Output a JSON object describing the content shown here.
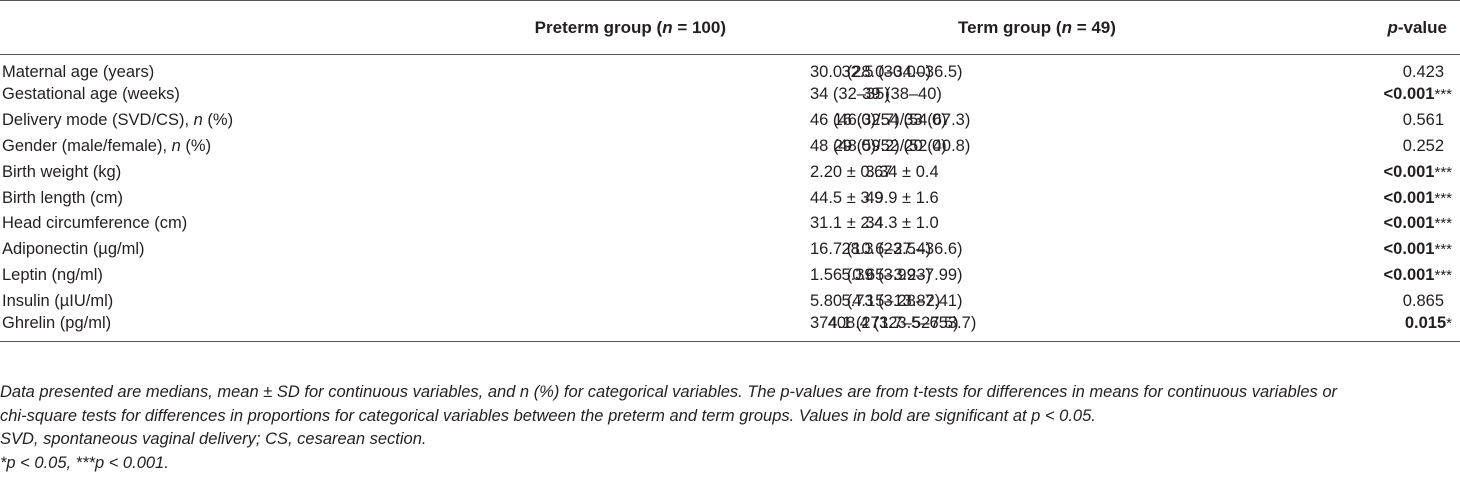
{
  "table": {
    "headers": {
      "variable": "",
      "preterm_prefix": "Preterm group (",
      "preterm_n": "n",
      "preterm_suffix": " = 100)",
      "term_prefix": "Term group (",
      "term_n": "n",
      "term_suffix": " = 49)",
      "p_italic": "p",
      "p_suffix": "-value"
    },
    "rows": [
      {
        "var": "Maternal age (years)",
        "var_italic": "",
        "var_tail": "",
        "preterm": "30.0 (28.0–34.0)",
        "term": "32.5 (30.0–36.5)",
        "p": "0.423",
        "stars": "",
        "significant": false
      },
      {
        "var": "Gestational age (weeks)",
        "var_italic": "",
        "var_tail": "",
        "preterm": "34 (32–35)",
        "term": "39 (38–40)",
        "p": "<0.001",
        "stars": "***",
        "significant": true
      },
      {
        "var": "Delivery mode (SVD/CS), ",
        "var_italic": "n",
        "var_tail": " (%)",
        "preterm": "46 (46.0)/54 (54.0)",
        "term": "16 (32.7)/33 (67.3)",
        "p": "0.561",
        "stars": "",
        "significant": false
      },
      {
        "var": "Gender (male/female), ",
        "var_italic": "n",
        "var_tail": " (%)",
        "preterm": "48 (48.0)/52 (52.0)",
        "term": "29 (59.2)/20 (40.8)",
        "p": "0.252",
        "stars": "",
        "significant": false
      },
      {
        "var": "Birth weight (kg)",
        "var_italic": "",
        "var_tail": "",
        "preterm": "2.20 ± 0.67",
        "term": "3.34 ± 0.4",
        "p": "<0.001",
        "stars": "***",
        "significant": true
      },
      {
        "var": "Birth length (cm)",
        "var_italic": "",
        "var_tail": "",
        "preterm": "44.5 ± 3.9",
        "term": "49.9 ± 1.6",
        "p": "<0.001",
        "stars": "***",
        "significant": true
      },
      {
        "var": "Head circumference (cm)",
        "var_italic": "",
        "var_tail": "",
        "preterm": "31.1 ± 2.4",
        "term": "34.3 ± 1.0",
        "p": "<0.001",
        "stars": "***",
        "significant": true
      },
      {
        "var": "Adiponectin (µg/ml)",
        "var_italic": "",
        "var_tail": "",
        "preterm": "16.7 (10.6–27.4)",
        "term": "28.3 (23.5–36.6)",
        "p": "<0.001",
        "stars": "***",
        "significant": true
      },
      {
        "var": "Leptin (ng/ml)",
        "var_italic": "",
        "var_tail": "",
        "preterm": "1.56 (0.65–3.23)",
        "term": "5.39 (3.99–7.99)",
        "p": "<0.001",
        "stars": "***",
        "significant": true
      },
      {
        "var": "Insulin (µIU/ml)",
        "var_italic": "",
        "var_tail": "",
        "preterm": "5.80 (4.15–13.82)",
        "term": "5.73 (3.28–7.41)",
        "p": "0.865",
        "stars": "",
        "significant": false
      },
      {
        "var": "Ghrelin (pg/ml)",
        "var_italic": "",
        "var_tail": "",
        "preterm": "374.1 (271.7–527.5)",
        "term": "408.4 (323.5–653.7)",
        "p": "0.015",
        "stars": "*",
        "significant": true
      }
    ]
  },
  "footnotes": {
    "line1": "Data presented are medians, mean ± SD for continuous variables, and n (%) for categorical variables. The p-values are from t-tests for differences in means for continuous variables or",
    "line2": "chi-square tests for differences in proportions for categorical variables between the preterm and term groups. Values in bold are significant at p < 0.05.",
    "line3": "SVD, spontaneous vaginal delivery; CS, cesarean section.",
    "line4": "*p < 0.05, ***p < 0.001."
  }
}
